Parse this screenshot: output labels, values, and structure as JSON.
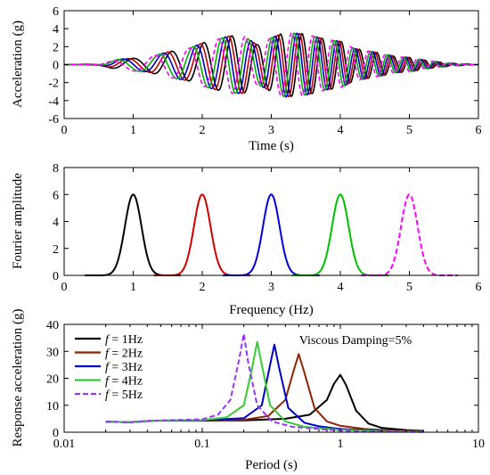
{
  "chart_data": [
    {
      "type": "line",
      "xlabel": "Time (s)",
      "ylabel": "Acceleration (g)",
      "xlim": [
        0,
        6
      ],
      "ylim": [
        -6,
        6
      ],
      "xticks": [
        "0",
        "1",
        "2",
        "3",
        "4",
        "5",
        "6"
      ],
      "yticks": [
        "-6",
        "-4",
        "-2",
        "0",
        "2",
        "4",
        "6"
      ],
      "series": [
        {
          "f": 1,
          "color": "#000000",
          "dash": false,
          "values": [
            [
              0,
              0
            ],
            [
              0.5,
              0.05
            ],
            [
              0.8,
              0.6
            ],
            [
              1.0,
              -0.7
            ],
            [
              1.2,
              0.8
            ],
            [
              1.5,
              1.4
            ],
            [
              1.8,
              -1.8
            ],
            [
              2.0,
              2.4
            ],
            [
              2.2,
              -2.8
            ],
            [
              2.4,
              3.2
            ],
            [
              2.6,
              -3.2
            ],
            [
              2.8,
              2.2
            ],
            [
              3.0,
              -3.0
            ],
            [
              3.2,
              3.6
            ],
            [
              3.5,
              -3.4
            ],
            [
              3.8,
              2.8
            ],
            [
              4.0,
              -2.6
            ],
            [
              4.2,
              1.8
            ],
            [
              4.5,
              -1.4
            ],
            [
              4.8,
              0.9
            ],
            [
              5.0,
              -0.8
            ],
            [
              5.3,
              0.4
            ],
            [
              5.6,
              -0.15
            ],
            [
              6,
              0
            ]
          ]
        },
        {
          "f": 2,
          "color": "#c00000",
          "dash": false,
          "values": [
            [
              0,
              0
            ],
            [
              0.5,
              0.05
            ],
            [
              0.8,
              0.6
            ],
            [
              1.0,
              -0.7
            ],
            [
              1.2,
              0.8
            ],
            [
              1.5,
              1.4
            ],
            [
              1.8,
              -1.8
            ],
            [
              2.0,
              2.4
            ],
            [
              2.2,
              -2.8
            ],
            [
              2.4,
              3.2
            ],
            [
              2.6,
              -3.2
            ],
            [
              2.8,
              2.2
            ],
            [
              3.0,
              -3.0
            ],
            [
              3.2,
              3.6
            ],
            [
              3.5,
              -3.4
            ],
            [
              3.8,
              2.8
            ],
            [
              4.0,
              -2.6
            ],
            [
              4.2,
              1.8
            ],
            [
              4.5,
              -1.4
            ],
            [
              4.8,
              0.9
            ],
            [
              5.0,
              -0.8
            ],
            [
              5.3,
              0.4
            ],
            [
              5.6,
              -0.15
            ],
            [
              6,
              0
            ]
          ]
        },
        {
          "f": 3,
          "color": "#0000cc",
          "dash": false,
          "values": [
            [
              0,
              0
            ],
            [
              0.5,
              0.05
            ],
            [
              0.8,
              0.6
            ],
            [
              1.0,
              -0.7
            ],
            [
              1.2,
              0.8
            ],
            [
              1.5,
              1.4
            ],
            [
              1.8,
              -1.8
            ],
            [
              2.0,
              2.4
            ],
            [
              2.2,
              -2.8
            ],
            [
              2.4,
              3.2
            ],
            [
              2.6,
              -3.2
            ],
            [
              2.8,
              2.2
            ],
            [
              3.0,
              -3.0
            ],
            [
              3.2,
              3.6
            ],
            [
              3.5,
              -3.4
            ],
            [
              3.8,
              2.8
            ],
            [
              4.0,
              -2.6
            ],
            [
              4.2,
              1.8
            ],
            [
              4.5,
              -1.4
            ],
            [
              4.8,
              0.9
            ],
            [
              5.0,
              -0.8
            ],
            [
              5.3,
              0.4
            ],
            [
              5.6,
              -0.15
            ],
            [
              6,
              0
            ]
          ]
        },
        {
          "f": 4,
          "color": "#00b000",
          "dash": false,
          "values": [
            [
              0,
              0
            ],
            [
              0.5,
              0.05
            ],
            [
              0.8,
              0.6
            ],
            [
              1.0,
              -0.7
            ],
            [
              1.2,
              0.8
            ],
            [
              1.5,
              1.4
            ],
            [
              1.8,
              -1.8
            ],
            [
              2.0,
              2.4
            ],
            [
              2.2,
              -2.8
            ],
            [
              2.4,
              3.2
            ],
            [
              2.6,
              -3.2
            ],
            [
              2.8,
              2.2
            ],
            [
              3.0,
              -3.0
            ],
            [
              3.2,
              3.6
            ],
            [
              3.5,
              -3.4
            ],
            [
              3.8,
              2.8
            ],
            [
              4.0,
              -2.6
            ],
            [
              4.2,
              1.8
            ],
            [
              4.5,
              -1.4
            ],
            [
              4.8,
              0.9
            ],
            [
              5.0,
              -0.8
            ],
            [
              5.3,
              0.4
            ],
            [
              5.6,
              -0.15
            ],
            [
              6,
              0
            ]
          ]
        },
        {
          "f": 5,
          "color": "#ff00ff",
          "dash": true,
          "values": [
            [
              0,
              0
            ],
            [
              0.5,
              0.05
            ],
            [
              0.8,
              0.6
            ],
            [
              1.0,
              -0.7
            ],
            [
              1.2,
              0.8
            ],
            [
              1.5,
              1.4
            ],
            [
              1.8,
              -1.8
            ],
            [
              2.0,
              2.4
            ],
            [
              2.2,
              -2.8
            ],
            [
              2.4,
              3.2
            ],
            [
              2.6,
              -3.2
            ],
            [
              2.8,
              2.2
            ],
            [
              3.0,
              -3.0
            ],
            [
              3.2,
              3.6
            ],
            [
              3.5,
              -3.4
            ],
            [
              3.8,
              2.8
            ],
            [
              4.0,
              -2.6
            ],
            [
              4.2,
              1.8
            ],
            [
              4.5,
              -1.4
            ],
            [
              4.8,
              0.9
            ],
            [
              5.0,
              -0.8
            ],
            [
              5.3,
              0.4
            ],
            [
              5.6,
              -0.15
            ],
            [
              6,
              0
            ]
          ]
        }
      ]
    },
    {
      "type": "line",
      "xlabel": "Frequency (Hz)",
      "ylabel": "Fourier amplitude",
      "xlim": [
        0,
        6
      ],
      "ylim": [
        0,
        8
      ],
      "xticks": [
        "0",
        "1",
        "2",
        "3",
        "4",
        "5",
        "6"
      ],
      "yticks": [
        "0",
        "2",
        "4",
        "6",
        "8"
      ],
      "series": [
        {
          "f": 1,
          "color": "#000000",
          "dash": false,
          "peak": 6.0
        },
        {
          "f": 2,
          "color": "#d00000",
          "dash": false,
          "peak": 6.0
        },
        {
          "f": 3,
          "color": "#0000dd",
          "dash": false,
          "peak": 6.0
        },
        {
          "f": 4,
          "color": "#00c000",
          "dash": false,
          "peak": 6.0
        },
        {
          "f": 5,
          "color": "#ff00ff",
          "dash": true,
          "peak": 6.0
        }
      ]
    },
    {
      "type": "line",
      "xlabel": "Period (s)",
      "ylabel": "Response acceleration (g)",
      "xscale": "log",
      "xlim": [
        0.01,
        10
      ],
      "ylim": [
        0,
        40
      ],
      "xticks": [
        "0.01",
        "0.1",
        "1",
        "10"
      ],
      "yticks": [
        "0",
        "10",
        "20",
        "30",
        "40"
      ],
      "annotation": "Viscous Damping=5%",
      "legend_position": "top-left",
      "series": [
        {
          "name_prefix": "f",
          "name_suffix": " = 1Hz",
          "color": "#000000",
          "dash": false,
          "values": [
            [
              0.02,
              3.9
            ],
            [
              0.03,
              3.7
            ],
            [
              0.045,
              4.3
            ],
            [
              0.1,
              4.3
            ],
            [
              0.2,
              4.4
            ],
            [
              0.4,
              5.0
            ],
            [
              0.6,
              6.5
            ],
            [
              0.8,
              12.0
            ],
            [
              0.9,
              18.0
            ],
            [
              1.0,
              21.3
            ],
            [
              1.1,
              17.5
            ],
            [
              1.3,
              8.0
            ],
            [
              1.6,
              3.2
            ],
            [
              2.0,
              1.6
            ],
            [
              3.0,
              0.8
            ],
            [
              4.0,
              0.5
            ]
          ]
        },
        {
          "name_prefix": "f",
          "name_suffix": " = 2Hz",
          "color": "#8b2500",
          "dash": false,
          "values": [
            [
              0.02,
              3.9
            ],
            [
              0.03,
              3.7
            ],
            [
              0.045,
              4.3
            ],
            [
              0.1,
              4.3
            ],
            [
              0.2,
              4.6
            ],
            [
              0.3,
              6.0
            ],
            [
              0.4,
              12.0
            ],
            [
              0.46,
              23.0
            ],
            [
              0.5,
              29.0
            ],
            [
              0.55,
              22.0
            ],
            [
              0.65,
              9.0
            ],
            [
              0.8,
              4.0
            ],
            [
              1.0,
              2.4
            ],
            [
              1.5,
              1.2
            ],
            [
              2.5,
              0.6
            ],
            [
              4.0,
              0.3
            ]
          ]
        },
        {
          "name_prefix": "f",
          "name_suffix": " = 3Hz",
          "color": "#0000cc",
          "dash": false,
          "values": [
            [
              0.02,
              3.9
            ],
            [
              0.03,
              3.7
            ],
            [
              0.045,
              4.3
            ],
            [
              0.1,
              4.4
            ],
            [
              0.2,
              5.2
            ],
            [
              0.27,
              10.0
            ],
            [
              0.31,
              25.0
            ],
            [
              0.333,
              32.5
            ],
            [
              0.36,
              24.0
            ],
            [
              0.42,
              9.0
            ],
            [
              0.55,
              3.5
            ],
            [
              0.7,
              2.2
            ],
            [
              1.0,
              1.2
            ],
            [
              2.0,
              0.5
            ],
            [
              4.0,
              0.2
            ]
          ]
        },
        {
          "name_prefix": "f",
          "name_suffix": " = 4Hz",
          "color": "#33cc33",
          "dash": false,
          "values": [
            [
              0.02,
              3.9
            ],
            [
              0.03,
              3.7
            ],
            [
              0.045,
              4.3
            ],
            [
              0.1,
              4.5
            ],
            [
              0.15,
              5.5
            ],
            [
              0.2,
              10.0
            ],
            [
              0.23,
              24.0
            ],
            [
              0.25,
              33.5
            ],
            [
              0.27,
              25.0
            ],
            [
              0.31,
              10.0
            ],
            [
              0.4,
              4.0
            ],
            [
              0.55,
              2.0
            ],
            [
              1.0,
              0.9
            ],
            [
              2.0,
              0.4
            ],
            [
              4.0,
              0.15
            ]
          ]
        },
        {
          "name_prefix": "f",
          "name_suffix": " = 5Hz",
          "color": "#9933ff",
          "dash": true,
          "values": [
            [
              0.02,
              3.9
            ],
            [
              0.03,
              3.7
            ],
            [
              0.045,
              4.3
            ],
            [
              0.1,
              4.8
            ],
            [
              0.13,
              6.5
            ],
            [
              0.16,
              12.0
            ],
            [
              0.185,
              27.0
            ],
            [
              0.2,
              36.5
            ],
            [
              0.215,
              26.0
            ],
            [
              0.25,
              10.0
            ],
            [
              0.32,
              4.0
            ],
            [
              0.45,
              2.0
            ],
            [
              1.0,
              0.6
            ],
            [
              2.0,
              0.25
            ],
            [
              4.0,
              0.1
            ]
          ]
        }
      ]
    }
  ]
}
